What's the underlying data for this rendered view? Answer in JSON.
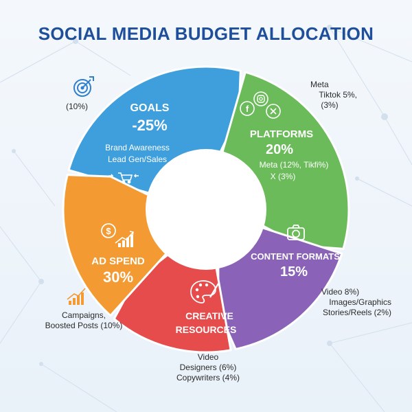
{
  "title": "SOCIAL MEDIA BUDGET ALLOCATION",
  "colors": {
    "goals": "#3f9fdd",
    "platforms": "#6cbb5b",
    "content": "#8a63b8",
    "creative": "#e64c4c",
    "adspend": "#f39a33",
    "title": "#1f4f9b"
  },
  "segments": {
    "goals": {
      "label": "GOALS",
      "value": "-25%",
      "lines": [
        "Brand Awareness",
        "Lead Gen/Sales"
      ],
      "icons": [
        "target-icon",
        "cart-icon"
      ]
    },
    "platforms": {
      "label": "PLATFORMS",
      "value": "20%",
      "lines": [
        "Meta (12%, Tikfi%)",
        "X (3%)"
      ],
      "icons": [
        "facebook-icon",
        "instagram-icon",
        "x-icon"
      ]
    },
    "content": {
      "label": "CONTENT FORMATS",
      "value": "15%",
      "icons": [
        "camera-icon"
      ]
    },
    "creative": {
      "label_line1": "CREATIVE",
      "label_line2": "RESOURCES",
      "icons": [
        "palette-icon"
      ]
    },
    "adspend": {
      "label": "AD SPEND",
      "value": "30%",
      "icons": [
        "money-chart-icon",
        "bar-chart-icon"
      ]
    }
  },
  "external": {
    "goals_note": "(10%)",
    "platforms_note": [
      "Meta",
      "Tiktok 5%,",
      "(3%)"
    ],
    "content_note": [
      "Video 8%)",
      "Images/Graphics",
      "Stories/Reels (2%)"
    ],
    "creative_note": [
      "Video",
      "Designers (6%)",
      "Copywriters (4%)"
    ],
    "adspend_note": [
      "Campaigns,",
      "Boosted Posts (10%)"
    ]
  }
}
